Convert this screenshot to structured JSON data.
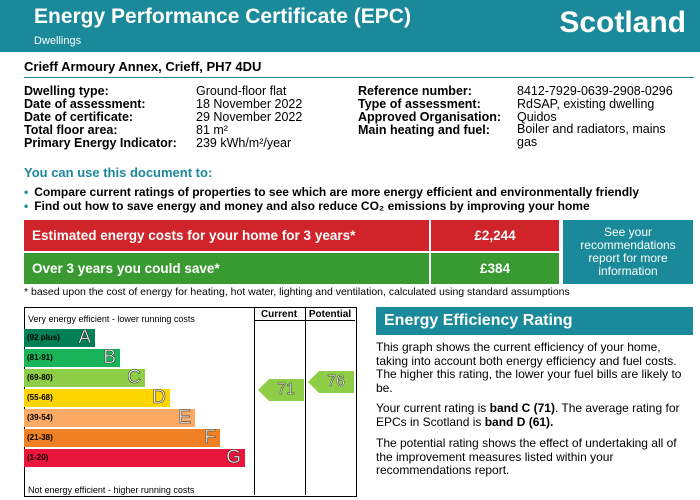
{
  "header": {
    "title": "Energy Performance Certificate (EPC)",
    "subtitle": "Dwellings",
    "country": "Scotland",
    "color": "#1a8a9a"
  },
  "address": "Crieff Armoury Annex, Crieff, PH7 4DU",
  "details_left": [
    {
      "label": "Dwelling type:",
      "value": "Ground-floor flat"
    },
    {
      "label": "Date of assessment:",
      "value": "18 November 2022"
    },
    {
      "label": "Date of certificate:",
      "value": "29 November 2022"
    },
    {
      "label": "Total floor area:",
      "value": "81 m²"
    },
    {
      "label": "Primary Energy Indicator:",
      "value": "239 kWh/m²/year"
    }
  ],
  "details_right": [
    {
      "label": "Reference number:",
      "value": "8412-7929-0639-2908-0296"
    },
    {
      "label": "Type of assessment:",
      "value": "RdSAP, existing dwelling"
    },
    {
      "label": "Approved Organisation:",
      "value": "Quidos"
    },
    {
      "label": "Main heating and fuel:",
      "value": "Boiler and radiators, mains gas"
    }
  ],
  "use": {
    "title": "You can use this document to:",
    "bullets": [
      "Compare current ratings of properties to see which are more energy efficient and environmentally friendly",
      "Find out how to save energy and money and also reduce CO₂ emissions by improving your home"
    ]
  },
  "costs": {
    "estimated_label": "Estimated energy costs for your home for 3 years*",
    "estimated_value": "£2,244",
    "save_label": "Over 3 years you could save*",
    "save_value": "£384",
    "see_box": "See your recommendations report for more information",
    "footnote": "* based upon the cost of energy for heating, hot water, lighting and ventilation, calculated using standard assumptions"
  },
  "chart": {
    "col_current": "Current",
    "col_potential": "Potential",
    "top_label": "Very energy efficient - lower running costs",
    "bottom_label": "Not energy efficient - higher running costs",
    "bands": [
      {
        "range": "(92 plus)",
        "letter": "A",
        "color": "#008054"
      },
      {
        "range": "(81-91)",
        "letter": "B",
        "color": "#19b459"
      },
      {
        "range": "(69-80)",
        "letter": "C",
        "color": "#8dce46"
      },
      {
        "range": "(55-68)",
        "letter": "D",
        "color": "#ffd500"
      },
      {
        "range": "(39-54)",
        "letter": "E",
        "color": "#fcaa65"
      },
      {
        "range": "(21-38)",
        "letter": "F",
        "color": "#ef8023"
      },
      {
        "range": "(1-20)",
        "letter": "G",
        "color": "#e9153b"
      }
    ],
    "current": {
      "value": "71",
      "band_index": 2,
      "color": "#8dce46"
    },
    "potential": {
      "value": "76",
      "band_index": 2,
      "color": "#8dce46"
    }
  },
  "eer": {
    "title": "Energy Efficiency Rating",
    "p1": "This graph shows the current efficiency of your home, taking into account both energy efficiency and fuel costs. The higher this rating, the lower your fuel bills are likely to be.",
    "p2_a": "Your current rating is ",
    "p2_b": "band C (71)",
    "p2_c": ". The average rating for EPCs in Scotland is ",
    "p2_d": "band D (61).",
    "p3": "The potential rating shows the effect of undertaking all of the improvement measures listed within your recommendations report."
  }
}
